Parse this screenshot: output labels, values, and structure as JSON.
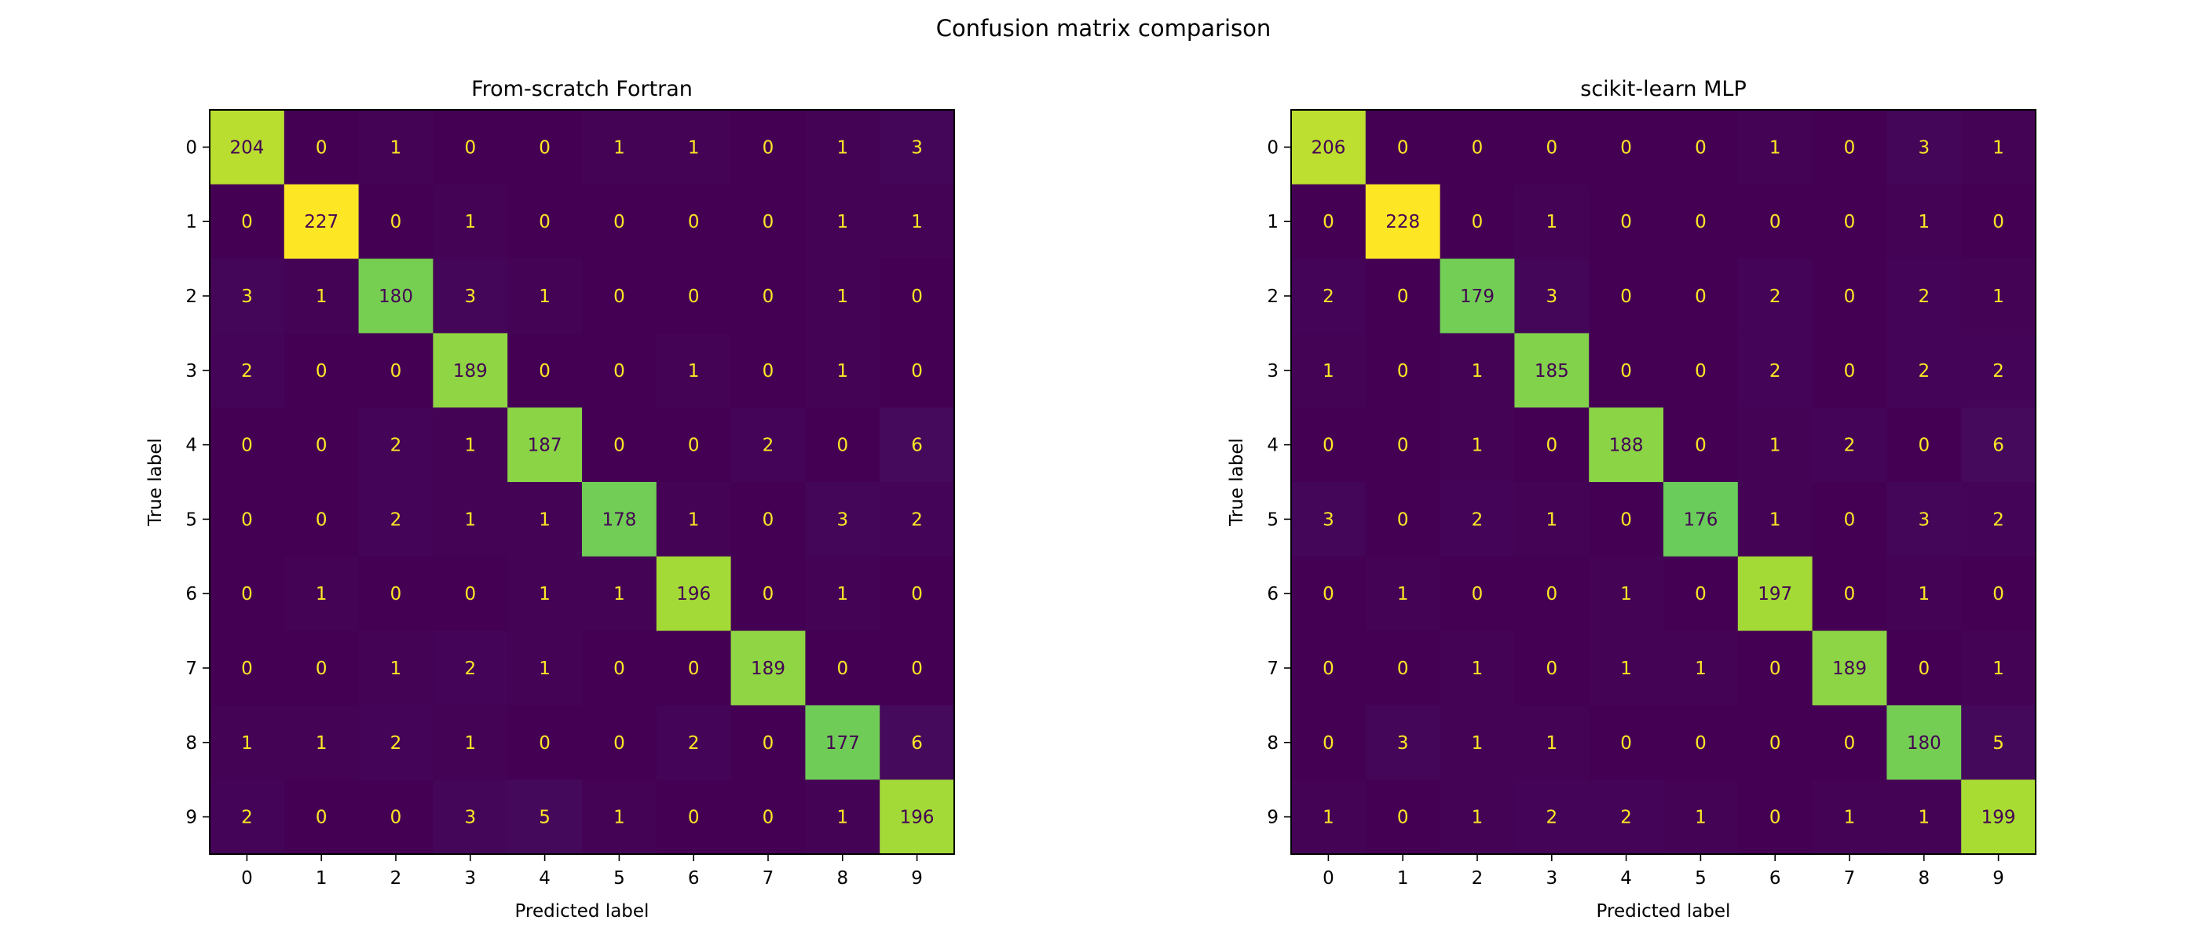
{
  "figure": {
    "title": "Confusion matrix comparison"
  },
  "chart_data": [
    {
      "type": "heatmap",
      "title": "From-scratch Fortran",
      "xlabel": "Predicted label",
      "ylabel": "True label",
      "x_ticks": [
        "0",
        "1",
        "2",
        "3",
        "4",
        "5",
        "6",
        "7",
        "8",
        "9"
      ],
      "y_ticks": [
        "0",
        "1",
        "2",
        "3",
        "4",
        "5",
        "6",
        "7",
        "8",
        "9"
      ],
      "colormap": "viridis",
      "matrix": [
        [
          204,
          0,
          1,
          0,
          0,
          1,
          1,
          0,
          1,
          3
        ],
        [
          0,
          227,
          0,
          1,
          0,
          0,
          0,
          0,
          1,
          1
        ],
        [
          3,
          1,
          180,
          3,
          1,
          0,
          0,
          0,
          1,
          0
        ],
        [
          2,
          0,
          0,
          189,
          0,
          0,
          1,
          0,
          1,
          0
        ],
        [
          0,
          0,
          2,
          1,
          187,
          0,
          0,
          2,
          0,
          6
        ],
        [
          0,
          0,
          2,
          1,
          1,
          178,
          1,
          0,
          3,
          2
        ],
        [
          0,
          1,
          0,
          0,
          1,
          1,
          196,
          0,
          1,
          0
        ],
        [
          0,
          0,
          1,
          2,
          1,
          0,
          0,
          189,
          0,
          0
        ],
        [
          1,
          1,
          2,
          1,
          0,
          0,
          2,
          0,
          177,
          6
        ],
        [
          2,
          0,
          0,
          3,
          5,
          1,
          0,
          0,
          1,
          196
        ]
      ]
    },
    {
      "type": "heatmap",
      "title": "scikit-learn MLP",
      "xlabel": "Predicted label",
      "ylabel": "True label",
      "x_ticks": [
        "0",
        "1",
        "2",
        "3",
        "4",
        "5",
        "6",
        "7",
        "8",
        "9"
      ],
      "y_ticks": [
        "0",
        "1",
        "2",
        "3",
        "4",
        "5",
        "6",
        "7",
        "8",
        "9"
      ],
      "colormap": "viridis",
      "matrix": [
        [
          206,
          0,
          0,
          0,
          0,
          0,
          1,
          0,
          3,
          1
        ],
        [
          0,
          228,
          0,
          1,
          0,
          0,
          0,
          0,
          1,
          0
        ],
        [
          2,
          0,
          179,
          3,
          0,
          0,
          2,
          0,
          2,
          1
        ],
        [
          1,
          0,
          1,
          185,
          0,
          0,
          2,
          0,
          2,
          2
        ],
        [
          0,
          0,
          1,
          0,
          188,
          0,
          1,
          2,
          0,
          6
        ],
        [
          3,
          0,
          2,
          1,
          0,
          176,
          1,
          0,
          3,
          2
        ],
        [
          0,
          1,
          0,
          0,
          1,
          0,
          197,
          0,
          1,
          0
        ],
        [
          0,
          0,
          1,
          0,
          1,
          1,
          0,
          189,
          0,
          1
        ],
        [
          0,
          3,
          1,
          1,
          0,
          0,
          0,
          0,
          180,
          5
        ],
        [
          1,
          0,
          1,
          2,
          2,
          1,
          0,
          1,
          1,
          199
        ]
      ]
    }
  ]
}
